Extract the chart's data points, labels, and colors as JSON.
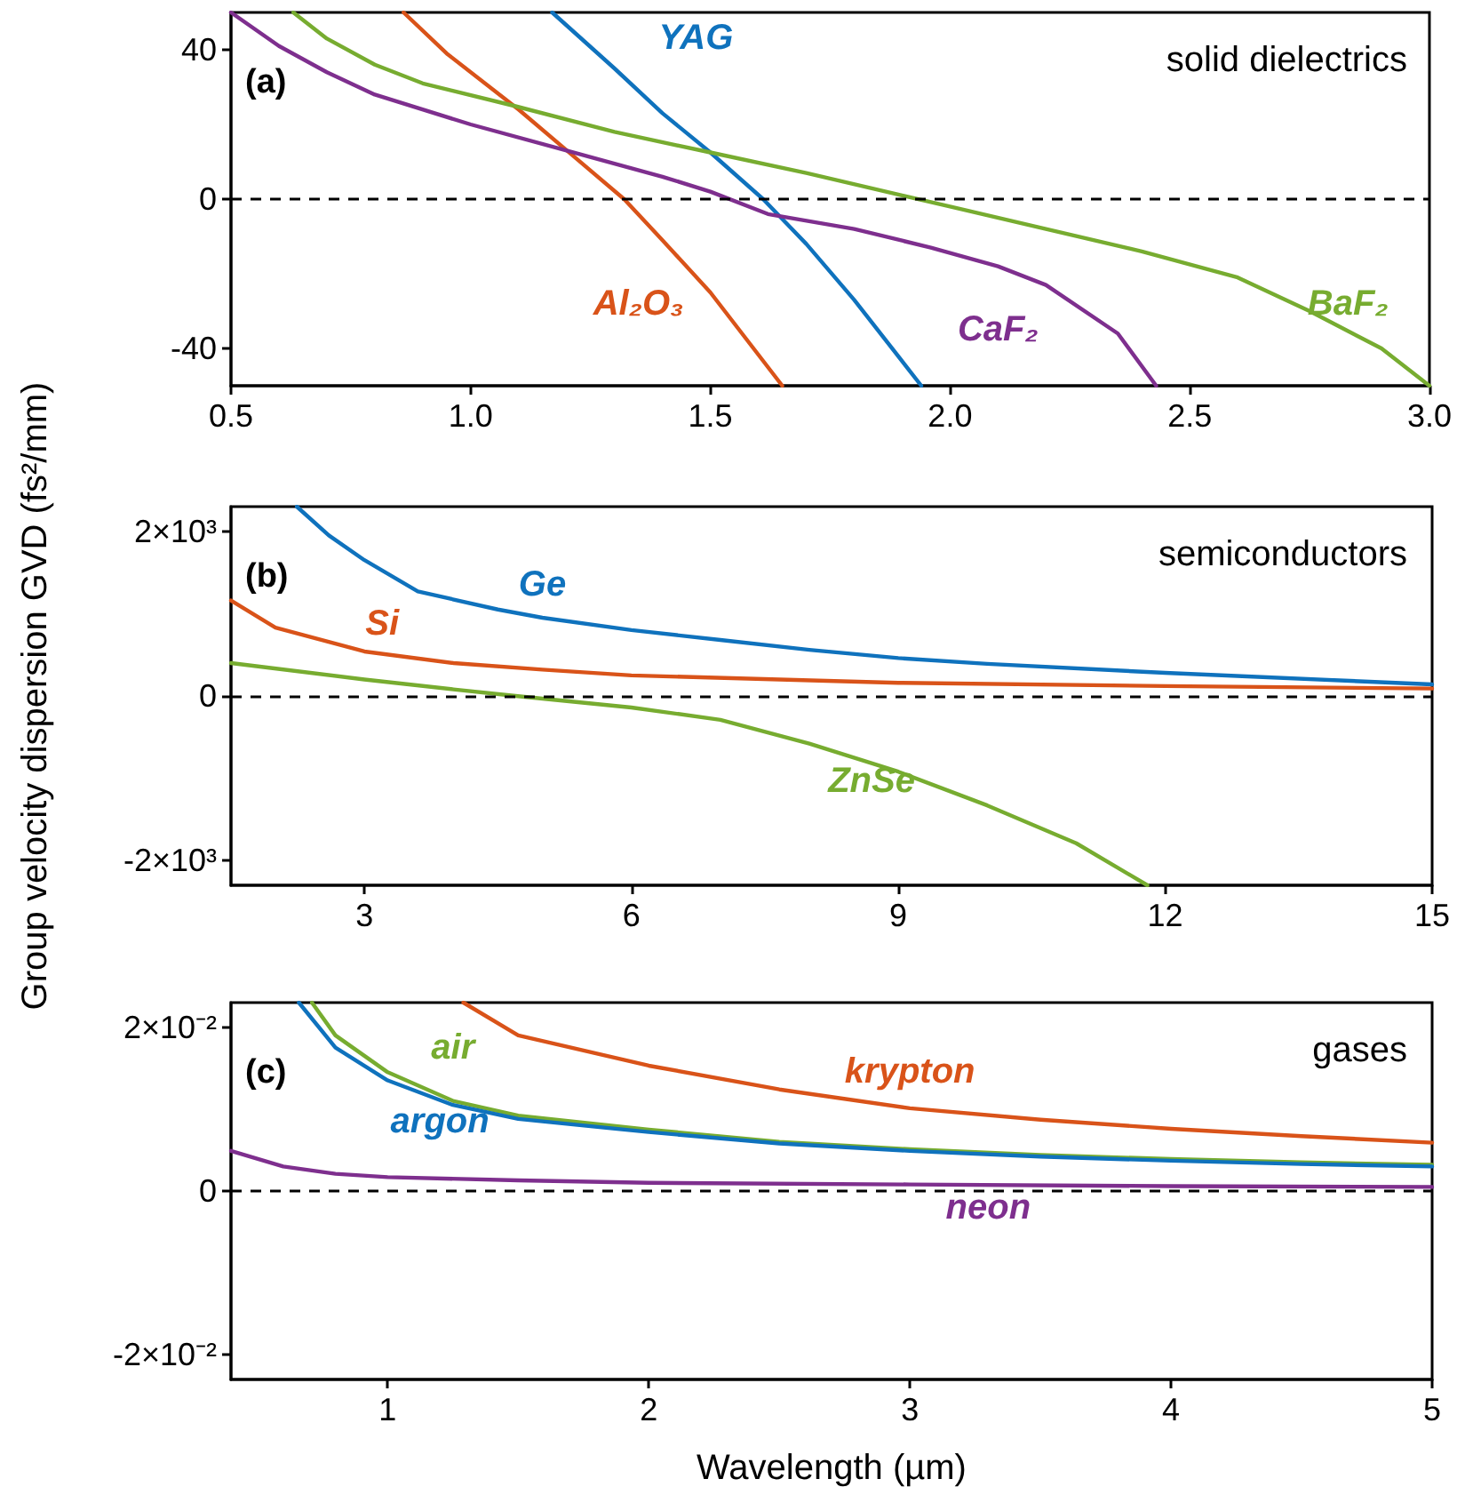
{
  "chart_data": [
    {
      "type": "line",
      "annotations": [
        "(a)",
        "solid dielectrics"
      ],
      "xlim": [
        0.5,
        3.0
      ],
      "xticks": [
        {
          "value": 0.5,
          "label": "0.5"
        },
        {
          "value": 1,
          "label": "1.0"
        },
        {
          "value": 1.5,
          "label": "1.5"
        },
        {
          "value": 2,
          "label": "2.0"
        },
        {
          "value": 2.5,
          "label": "2.5"
        },
        {
          "value": 3,
          "label": "3.0"
        }
      ],
      "ylim": [
        -50,
        50
      ],
      "yticks": [
        -40,
        0,
        40
      ],
      "ref_lines": [
        {
          "axis": "y",
          "value": 0,
          "color": "#000000",
          "line_style": "dashed"
        }
      ],
      "series": [
        {
          "name": "YAG",
          "color": "#0f72bd",
          "x": [
            1.17,
            1.3,
            1.4,
            1.5,
            1.61,
            1.7,
            1.8,
            1.94
          ],
          "values": [
            50,
            35,
            23,
            12.5,
            0,
            -12,
            -27,
            -50
          ]
        },
        {
          "name": "Al₂O₃",
          "color": "#d95319",
          "x": [
            0.86,
            0.95,
            1.05,
            1.1,
            1.21,
            1.32,
            1.4,
            1.5,
            1.65
          ],
          "values": [
            50,
            39,
            29,
            24,
            12,
            0,
            -11,
            -25,
            -50
          ]
        },
        {
          "name": "CaF₂",
          "color": "#7e2f8e",
          "x": [
            0.5,
            0.6,
            0.7,
            0.8,
            1.0,
            1.2,
            1.4,
            1.5,
            1.62,
            1.8,
            1.96,
            2.1,
            2.2,
            2.35,
            2.43
          ],
          "values": [
            50,
            41,
            34,
            28,
            20,
            13,
            6,
            2,
            -4,
            -8,
            -13,
            -18,
            -23,
            -36,
            -50
          ]
        },
        {
          "name": "BaF₂",
          "color": "#77ac30",
          "x": [
            0.63,
            0.7,
            0.8,
            0.9,
            1.09,
            1.3,
            1.5,
            1.7,
            1.9,
            2.0,
            2.2,
            2.4,
            2.6,
            2.75,
            2.9,
            3.0
          ],
          "values": [
            50,
            43,
            36,
            31,
            25,
            18,
            12.5,
            7,
            1,
            -2,
            -8,
            -14,
            -21,
            -30,
            -40,
            -50
          ]
        }
      ]
    },
    {
      "type": "line",
      "annotations": [
        "(b)",
        "semiconductors"
      ],
      "ylabel": "Group velocity dispersion GVD (fs²/mm)",
      "xlim": [
        1.5,
        15
      ],
      "xticks": [
        3,
        6,
        9,
        12,
        15
      ],
      "ylim": [
        -2300,
        2300
      ],
      "yticks": [
        {
          "value": -2000,
          "label": "-2×10³"
        },
        0,
        {
          "value": 2000,
          "label": "2×10³"
        }
      ],
      "ref_lines": [
        {
          "axis": "y",
          "value": 0,
          "color": "#000000",
          "line_style": "dashed"
        }
      ],
      "series": [
        {
          "name": "Ge",
          "color": "#0f72bd",
          "x": [
            2.24,
            2.6,
            3,
            3.6,
            4.5,
            5,
            6,
            7,
            8,
            9,
            10,
            12,
            15
          ],
          "values": [
            2300,
            1950,
            1650,
            1270,
            1050,
            950,
            800,
            680,
            560,
            460,
            390,
            280,
            140
          ]
        },
        {
          "name": "Si",
          "color": "#d95319",
          "x": [
            1.5,
            2,
            3,
            4,
            5,
            6,
            9,
            12,
            15
          ],
          "values": [
            1160,
            830,
            540,
            400,
            320,
            250,
            160,
            120,
            90
          ]
        },
        {
          "name": "ZnSe",
          "color": "#77ac30",
          "x": [
            1.5,
            3,
            4,
            4.7,
            6,
            7,
            8,
            9,
            10,
            11,
            11.8
          ],
          "values": [
            400,
            200,
            80,
            0,
            -140,
            -290,
            -580,
            -920,
            -1330,
            -1790,
            -2300
          ]
        }
      ]
    },
    {
      "type": "line",
      "annotations": [
        "(c)",
        "gases"
      ],
      "xlabel": "Wavelength (µm)",
      "xlim": [
        0.4,
        5
      ],
      "xticks": [
        1,
        2,
        3,
        4,
        5
      ],
      "ylim": [
        -0.023,
        0.023
      ],
      "yticks": [
        {
          "value": -0.02,
          "label": "-2×10⁻²"
        },
        0,
        {
          "value": 0.02,
          "label": "2×10⁻²"
        }
      ],
      "ref_lines": [
        {
          "axis": "y",
          "value": 0,
          "color": "#000000",
          "line_style": "dashed"
        }
      ],
      "series": [
        {
          "name": "krypton",
          "color": "#d95319",
          "x": [
            1.29,
            1.5,
            2,
            2.5,
            3,
            3.5,
            4,
            4.5,
            5
          ],
          "values": [
            0.023,
            0.019,
            0.0153,
            0.0124,
            0.0101,
            0.0087,
            0.0076,
            0.0067,
            0.0059
          ]
        },
        {
          "name": "air",
          "color": "#77ac30",
          "x": [
            0.71,
            0.8,
            1.0,
            1.25,
            1.5,
            2,
            2.5,
            3,
            3.5,
            4,
            4.5,
            5
          ],
          "values": [
            0.023,
            0.019,
            0.0145,
            0.011,
            0.0092,
            0.0075,
            0.006,
            0.0051,
            0.0044,
            0.0039,
            0.0035,
            0.0032
          ]
        },
        {
          "name": "argon",
          "color": "#0f72bd",
          "x": [
            0.66,
            0.8,
            1.0,
            1.25,
            1.5,
            2,
            2.5,
            3,
            3.5,
            4,
            4.5,
            5
          ],
          "values": [
            0.023,
            0.0175,
            0.0135,
            0.0105,
            0.0088,
            0.0072,
            0.0058,
            0.0049,
            0.0042,
            0.0037,
            0.0033,
            0.003
          ]
        },
        {
          "name": "neon",
          "color": "#7e2f8e",
          "x": [
            0.4,
            0.6,
            0.8,
            1.0,
            1.5,
            2,
            3,
            4,
            5
          ],
          "values": [
            0.0049,
            0.003,
            0.0021,
            0.0017,
            0.0013,
            0.001,
            0.0008,
            0.0006,
            0.0005
          ]
        }
      ]
    }
  ]
}
